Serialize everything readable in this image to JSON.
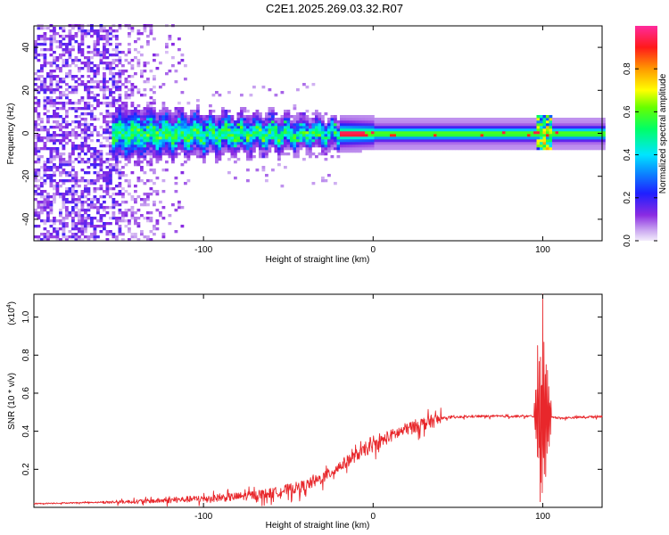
{
  "title": "C2E1.2025.269.03.32.R07",
  "colors": {
    "snr_line": "#e8272b",
    "axis": "#000000",
    "background": "#ffffff"
  },
  "chart_data": [
    {
      "type": "heatmap",
      "name": "spectrogram",
      "xlabel": "Height of straight line (km)",
      "ylabel": "Frequency (Hz)",
      "xlim": [
        -200,
        135
      ],
      "ylim": [
        -50,
        50
      ],
      "x_ticks": [
        -100,
        0,
        100
      ],
      "x_tick_labels": [
        "-100",
        "0",
        "100"
      ],
      "y_ticks": [
        -40,
        -20,
        0,
        20,
        40
      ],
      "y_tick_labels": [
        "-40",
        "-20",
        "0",
        "20",
        "40"
      ],
      "colorbar": {
        "label": "Normalized spectral amplitude",
        "range": [
          0,
          1
        ],
        "ticks": [
          0.0,
          0.2,
          0.4,
          0.6,
          0.8
        ],
        "tick_labels": [
          "0.0",
          "0.2",
          "0.4",
          "0.6",
          "0.8"
        ],
        "colormap": "rainbow (violet-blue-cyan-green-yellow-orange-red-magenta)"
      },
      "features": {
        "noise_region_x": [
          -200,
          -110
        ],
        "signal_band_center_hz": 0,
        "signal_band_halfwidth_hz": [
          8,
          3
        ],
        "strong_signal_start_x": -20,
        "disturbance_x": 100
      }
    },
    {
      "type": "line",
      "name": "snr",
      "xlabel": "Height of straight line (km)",
      "ylabel": "SNR (10 * v/v)",
      "scale_label": "(x10",
      "scale_exponent": "4",
      "xlim": [
        -200,
        135
      ],
      "ylim": [
        0,
        1.12
      ],
      "x_ticks": [
        -100,
        0,
        100
      ],
      "x_tick_labels": [
        "-100",
        "0",
        "100"
      ],
      "y_ticks": [
        0.2,
        0.4,
        0.6,
        0.8,
        1.0
      ],
      "y_tick_labels": [
        "0.2",
        "0.4",
        "0.6",
        "0.8",
        "1.0"
      ],
      "series": [
        {
          "name": "SNR",
          "x": [
            -200,
            -150,
            -120,
            -100,
            -80,
            -60,
            -50,
            -40,
            -30,
            -20,
            -10,
            0,
            10,
            20,
            30,
            40,
            60,
            80,
            95,
            100,
            105,
            110,
            135
          ],
          "y": [
            0.02,
            0.03,
            0.04,
            0.05,
            0.06,
            0.08,
            0.1,
            0.12,
            0.16,
            0.22,
            0.28,
            0.33,
            0.38,
            0.42,
            0.45,
            0.47,
            0.48,
            0.48,
            0.48,
            0.55,
            0.48,
            0.47,
            0.48
          ]
        }
      ],
      "peaks": [
        {
          "x": 97,
          "y": 0.85
        },
        {
          "x": 100,
          "y": 1.12
        },
        {
          "x": 102,
          "y": 0.75
        },
        {
          "x": 98.5,
          "y": 0.03
        }
      ]
    }
  ]
}
